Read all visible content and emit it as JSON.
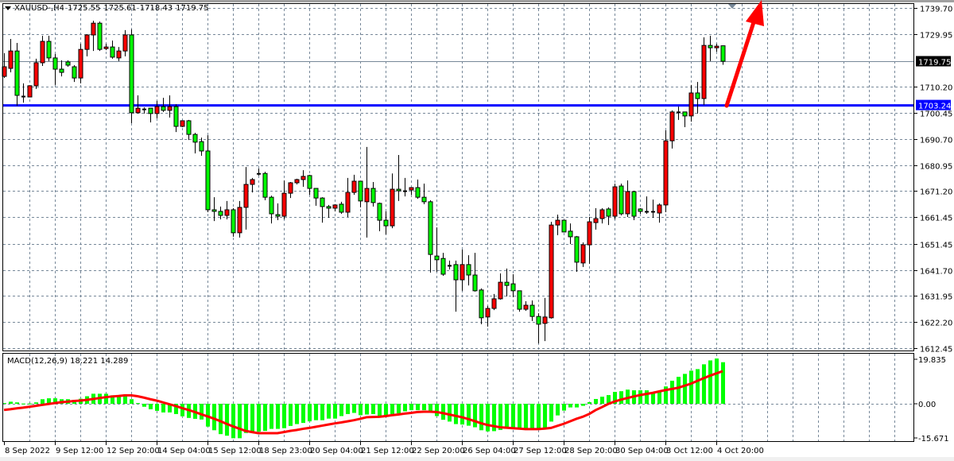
{
  "header": {
    "symbol": "XAUUSD-,H4",
    "open": "1725.55",
    "high": "1725.61",
    "low": "1718.43",
    "close": "1719.75"
  },
  "macd_header": {
    "name": "MACD(12,26,9)",
    "main": "18.221",
    "signal": "14.289"
  },
  "colors": {
    "bull": "#ff0000",
    "bear": "#00ff00",
    "grid": "#778899",
    "level_line": "#0000ff",
    "bid_line": "#778899",
    "signal": "#ff0000",
    "histogram": "#00ff00",
    "arrow": "#ff0000"
  },
  "chart_data": [
    {
      "type": "candlestick",
      "title": "XAUUSD-,H4",
      "ylim": [
        1612.45,
        1739.7
      ],
      "y_ticks": [
        "1739.70",
        "1729.95",
        "1710.20",
        "1700.45",
        "1690.70",
        "1680.95",
        "1671.20",
        "1661.45",
        "1651.45",
        "1641.70",
        "1631.95",
        "1622.20",
        "1612.45"
      ],
      "current_price": "1719.75",
      "horizontal_line": "1703.24",
      "annotation": "red-arrow-up",
      "x_tick_labels": [
        "8 Sep 2022",
        "9 Sep 12:00",
        "12 Sep 20:00",
        "14 Sep 04:00",
        "15 Sep 12:00",
        "18 Sep 23:00",
        "20 Sep 04:00",
        "21 Sep 12:00",
        "22 Sep 20:00",
        "26 Sep 04:00",
        "27 Sep 12:00",
        "28 Sep 20:00",
        "30 Sep 04:00",
        "3 Oct 12:00",
        "4 Oct 20:00"
      ],
      "grid": true,
      "ohlc": [
        [
          1714.1,
          1722.8,
          1713.5,
          1717.7
        ],
        [
          1717.1,
          1728.1,
          1715.6,
          1723.6
        ],
        [
          1723.6,
          1726.6,
          1703.1,
          1707.0
        ],
        [
          1706.7,
          1711.5,
          1704.3,
          1706.8
        ],
        [
          1706.4,
          1710.6,
          1706.4,
          1710.6
        ],
        [
          1710.6,
          1720.7,
          1709.4,
          1719.2
        ],
        [
          1719.2,
          1729.3,
          1718.0,
          1727.2
        ],
        [
          1727.2,
          1729.3,
          1719.8,
          1721.0
        ],
        [
          1721.0,
          1722.5,
          1710.9,
          1716.8
        ],
        [
          1716.8,
          1720.1,
          1714.1,
          1715.6
        ],
        [
          1719.5,
          1720.1,
          1717.7,
          1718.3
        ],
        [
          1717.7,
          1718.3,
          1712.0,
          1713.5
        ],
        [
          1713.5,
          1726.3,
          1711.5,
          1724.2
        ],
        [
          1724.2,
          1729.9,
          1721.6,
          1729.6
        ],
        [
          1729.6,
          1734.9,
          1723.6,
          1734.0
        ],
        [
          1734.0,
          1734.6,
          1723.6,
          1724.2
        ],
        [
          1724.5,
          1726.3,
          1723.9,
          1725.1
        ],
        [
          1725.1,
          1727.5,
          1720.7,
          1721.3
        ],
        [
          1721.0,
          1725.1,
          1719.8,
          1723.6
        ],
        [
          1723.6,
          1731.4,
          1721.6,
          1729.6
        ],
        [
          1729.6,
          1731.7,
          1696.6,
          1700.5
        ],
        [
          1700.5,
          1707.0,
          1700.2,
          1702.2
        ],
        [
          1701.9,
          1702.5,
          1700.2,
          1702.0
        ],
        [
          1702.2,
          1702.2,
          1696.9,
          1700.2
        ],
        [
          1700.2,
          1704.9,
          1698.4,
          1702.8
        ],
        [
          1702.8,
          1706.1,
          1700.8,
          1701.4
        ],
        [
          1701.4,
          1707.0,
          1698.7,
          1702.8
        ],
        [
          1702.8,
          1703.7,
          1693.3,
          1695.4
        ],
        [
          1695.4,
          1697.5,
          1695.1,
          1697.5
        ],
        [
          1697.5,
          1697.8,
          1690.3,
          1692.4
        ],
        [
          1692.4,
          1693.0,
          1685.3,
          1689.5
        ],
        [
          1689.7,
          1691.2,
          1684.4,
          1686.2
        ],
        [
          1686.2,
          1692.1,
          1663.3,
          1664.2
        ],
        [
          1664.2,
          1668.9,
          1660.0,
          1663.6
        ],
        [
          1663.6,
          1665.4,
          1660.6,
          1662.1
        ],
        [
          1662.1,
          1667.5,
          1660.6,
          1664.2
        ],
        [
          1664.2,
          1664.8,
          1654.1,
          1655.6
        ],
        [
          1655.6,
          1667.5,
          1653.8,
          1665.1
        ],
        [
          1665.1,
          1680.2,
          1656.8,
          1673.7
        ],
        [
          1673.7,
          1676.1,
          1670.7,
          1675.5
        ],
        [
          1677.8,
          1679.6,
          1677.0,
          1677.9
        ],
        [
          1677.8,
          1678.4,
          1667.8,
          1668.9
        ],
        [
          1668.9,
          1669.5,
          1659.1,
          1662.7
        ],
        [
          1662.4,
          1666.6,
          1660.3,
          1661.8
        ],
        [
          1661.8,
          1675.2,
          1660.6,
          1670.4
        ],
        [
          1670.4,
          1674.6,
          1668.6,
          1674.3
        ],
        [
          1674.3,
          1675.8,
          1673.7,
          1675.5
        ],
        [
          1675.5,
          1679.0,
          1672.8,
          1676.7
        ],
        [
          1677.0,
          1677.3,
          1669.8,
          1672.2
        ],
        [
          1672.2,
          1672.2,
          1665.7,
          1668.6
        ],
        [
          1668.6,
          1668.9,
          1659.4,
          1665.4
        ],
        [
          1665.4,
          1666.0,
          1661.2,
          1664.8
        ],
        [
          1664.8,
          1666.3,
          1663.6,
          1666.0
        ],
        [
          1666.3,
          1667.2,
          1662.7,
          1663.3
        ],
        [
          1663.3,
          1676.1,
          1661.5,
          1670.7
        ],
        [
          1670.7,
          1677.3,
          1669.8,
          1674.9
        ],
        [
          1674.9,
          1674.9,
          1665.1,
          1667.5
        ],
        [
          1667.2,
          1687.7,
          1653.8,
          1672.2
        ],
        [
          1672.2,
          1674.6,
          1665.4,
          1666.9
        ],
        [
          1666.6,
          1666.9,
          1656.2,
          1660.3
        ],
        [
          1660.3,
          1663.6,
          1655.0,
          1658.2
        ],
        [
          1658.2,
          1677.8,
          1657.3,
          1671.9
        ],
        [
          1671.9,
          1684.7,
          1667.5,
          1671.3
        ],
        [
          1671.3,
          1676.1,
          1669.2,
          1671.3
        ],
        [
          1671.6,
          1672.5,
          1669.8,
          1672.5
        ],
        [
          1672.5,
          1675.5,
          1668.3,
          1668.9
        ],
        [
          1668.9,
          1674.0,
          1666.3,
          1667.2
        ],
        [
          1667.2,
          1667.8,
          1640.7,
          1647.5
        ],
        [
          1646.9,
          1657.6,
          1641.0,
          1645.5
        ],
        [
          1646.0,
          1648.1,
          1639.5,
          1640.1
        ],
        [
          1643.4,
          1645.2,
          1641.9,
          1643.4
        ],
        [
          1643.7,
          1645.2,
          1626.1,
          1638.0
        ],
        [
          1638.0,
          1649.3,
          1633.9,
          1643.7
        ],
        [
          1643.7,
          1647.2,
          1635.9,
          1639.8
        ],
        [
          1639.8,
          1648.1,
          1633.6,
          1633.9
        ],
        [
          1634.2,
          1634.8,
          1621.4,
          1623.8
        ],
        [
          1624.1,
          1628.2,
          1620.5,
          1627.3
        ],
        [
          1627.3,
          1632.7,
          1626.7,
          1630.9
        ],
        [
          1630.9,
          1640.4,
          1630.6,
          1637.1
        ],
        [
          1637.1,
          1642.2,
          1631.8,
          1635.9
        ],
        [
          1636.5,
          1640.1,
          1631.5,
          1633.9
        ],
        [
          1633.9,
          1633.9,
          1626.1,
          1627.0
        ],
        [
          1627.0,
          1630.0,
          1626.4,
          1628.5
        ],
        [
          1628.5,
          1630.3,
          1622.6,
          1624.3
        ],
        [
          1624.3,
          1625.5,
          1614.2,
          1621.4
        ],
        [
          1621.7,
          1631.2,
          1615.1,
          1624.1
        ],
        [
          1623.8,
          1659.7,
          1623.5,
          1658.5
        ],
        [
          1658.5,
          1662.4,
          1654.7,
          1660.3
        ],
        [
          1660.3,
          1660.3,
          1655.9,
          1655.9
        ],
        [
          1656.2,
          1659.1,
          1651.4,
          1654.1
        ],
        [
          1654.1,
          1654.4,
          1641.0,
          1644.6
        ],
        [
          1644.3,
          1652.0,
          1642.8,
          1651.1
        ],
        [
          1651.1,
          1661.5,
          1644.0,
          1659.7
        ],
        [
          1659.4,
          1664.8,
          1656.8,
          1660.9
        ],
        [
          1660.9,
          1664.8,
          1659.1,
          1664.2
        ],
        [
          1664.5,
          1665.1,
          1658.5,
          1661.8
        ],
        [
          1661.8,
          1674.0,
          1660.6,
          1672.8
        ],
        [
          1673.1,
          1674.0,
          1662.1,
          1662.7
        ],
        [
          1662.7,
          1675.2,
          1661.5,
          1671.0
        ],
        [
          1671.0,
          1671.3,
          1660.3,
          1661.8
        ],
        [
          1664.5,
          1664.8,
          1662.7,
          1663.6
        ],
        [
          1663.6,
          1669.2,
          1662.7,
          1663.6
        ],
        [
          1663.6,
          1668.0,
          1661.2,
          1663.6
        ],
        [
          1663.0,
          1666.6,
          1659.4,
          1666.0
        ],
        [
          1666.0,
          1693.9,
          1663.3,
          1690.0
        ],
        [
          1690.0,
          1701.4,
          1687.1,
          1700.8
        ],
        [
          1700.8,
          1702.8,
          1697.8,
          1700.8
        ],
        [
          1700.8,
          1700.8,
          1695.1,
          1699.3
        ],
        [
          1699.3,
          1710.9,
          1697.2,
          1707.9
        ],
        [
          1707.9,
          1712.0,
          1700.2,
          1705.8
        ],
        [
          1705.8,
          1728.7,
          1703.4,
          1725.7
        ],
        [
          1725.7,
          1729.3,
          1719.8,
          1724.8
        ],
        [
          1724.8,
          1726.3,
          1723.3,
          1725.4
        ],
        [
          1725.55,
          1725.61,
          1718.43,
          1719.75
        ]
      ]
    },
    {
      "type": "bar",
      "title": "MACD(12,26,9)",
      "ylim": [
        -15.671,
        19.835
      ],
      "y_ticks": [
        "19.835",
        "0.00",
        "-15.671"
      ],
      "series": [
        {
          "name": "MACD",
          "type": "bar",
          "values": [
            0.3,
            0.9,
            0.6,
            0.1,
            0.1,
            0.6,
            2.0,
            2.4,
            2.4,
            2.0,
            2.0,
            1.7,
            2.2,
            3.3,
            4.4,
            4.4,
            4.4,
            3.7,
            3.3,
            3.3,
            2.0,
            0.3,
            -1.3,
            -2.4,
            -3.1,
            -3.8,
            -3.8,
            -4.5,
            -5.5,
            -6.2,
            -6.6,
            -6.9,
            -10.0,
            -11.6,
            -13.3,
            -14.0,
            -15.1,
            -15.1,
            -12.8,
            -12.2,
            -12.2,
            -11.9,
            -11.0,
            -11.0,
            -10.7,
            -9.7,
            -8.9,
            -8.4,
            -7.7,
            -7.2,
            -7.2,
            -6.5,
            -6.5,
            -5.4,
            -4.5,
            -4.0,
            -5.0,
            -4.7,
            -4.5,
            -5.3,
            -5.4,
            -4.5,
            -4.2,
            -3.3,
            -2.8,
            -2.8,
            -2.8,
            -3.3,
            -5.4,
            -7.0,
            -7.8,
            -8.9,
            -9.1,
            -9.6,
            -10.3,
            -11.6,
            -12.1,
            -12.0,
            -11.5,
            -10.8,
            -10.8,
            -10.8,
            -10.8,
            -10.8,
            -10.8,
            -10.5,
            -7.8,
            -5.1,
            -3.0,
            -1.6,
            -1.6,
            -0.9,
            0.7,
            2.1,
            3.1,
            3.8,
            5.2,
            5.5,
            6.2,
            5.9,
            5.9,
            5.9,
            5.1,
            5.1,
            7.6,
            10.1,
            11.8,
            13.1,
            14.5,
            15.2,
            17.3,
            19.0,
            19.835,
            18.221
          ]
        },
        {
          "name": "Signal",
          "type": "line",
          "values": [
            -2.7,
            -2.4,
            -2.0,
            -1.7,
            -1.3,
            -0.9,
            -0.5,
            -0.1,
            0.3,
            0.7,
            0.9,
            1.2,
            1.4,
            1.7,
            2.1,
            2.5,
            2.9,
            3.2,
            3.4,
            3.7,
            3.7,
            3.3,
            2.7,
            2.0,
            1.4,
            0.6,
            -0.2,
            -1.0,
            -1.9,
            -2.7,
            -3.6,
            -4.6,
            -5.5,
            -6.5,
            -7.6,
            -8.8,
            -9.9,
            -10.9,
            -11.9,
            -12.4,
            -12.9,
            -12.9,
            -12.9,
            -12.9,
            -12.4,
            -11.9,
            -11.5,
            -11.0,
            -10.6,
            -10.1,
            -9.6,
            -9.1,
            -8.6,
            -8.2,
            -7.7,
            -7.2,
            -6.6,
            -5.9,
            -5.8,
            -5.7,
            -5.4,
            -5.0,
            -4.7,
            -4.3,
            -4.0,
            -3.6,
            -3.5,
            -3.5,
            -3.6,
            -4.1,
            -4.7,
            -5.3,
            -5.9,
            -6.7,
            -7.6,
            -8.5,
            -9.3,
            -9.8,
            -10.3,
            -10.5,
            -10.7,
            -10.9,
            -11.1,
            -11.1,
            -11.1,
            -10.9,
            -10.6,
            -9.7,
            -8.8,
            -7.7,
            -6.6,
            -5.7,
            -4.5,
            -2.8,
            -1.5,
            -0.1,
            1.0,
            1.8,
            2.5,
            3.2,
            3.8,
            4.3,
            4.8,
            5.4,
            6.0,
            6.5,
            7.0,
            7.9,
            8.8,
            10.0,
            11.2,
            12.3,
            13.3,
            14.289
          ]
        }
      ]
    }
  ]
}
